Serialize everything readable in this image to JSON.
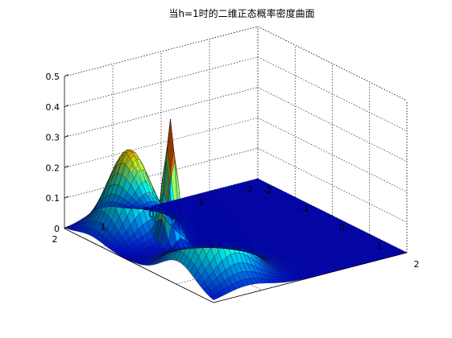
{
  "chart_data": {
    "type": "surface",
    "title": "当h=1时的二维正态概率密度曲面",
    "xlabel": "",
    "ylabel": "",
    "zlabel": "",
    "xlim": [
      -2,
      2
    ],
    "ylim": [
      -2,
      2
    ],
    "zlim": [
      0,
      0.5
    ],
    "x_ticks": [
      "-2",
      "-1",
      "0",
      "1",
      "2"
    ],
    "y_ticks": [
      "-2",
      "-1",
      "0",
      "1",
      "2"
    ],
    "z_ticks": [
      "0",
      "0.1",
      "0.2",
      "0.3",
      "0.4",
      "0.5"
    ],
    "grid": true,
    "colormap": "jet",
    "components": [
      {
        "x0": -1.3,
        "y0": 1.2,
        "sigma_x": 0.35,
        "sigma_y": 0.35,
        "peak": 0.27
      },
      {
        "x0": -0.45,
        "y0": 1.0,
        "sigma_x": 0.12,
        "sigma_y": 0.1,
        "peak": 0.4
      },
      {
        "x0": 1.05,
        "y0": 1.3,
        "sigma_x": 0.45,
        "sigma_y": 0.45,
        "peak": 0.26
      }
    ]
  }
}
